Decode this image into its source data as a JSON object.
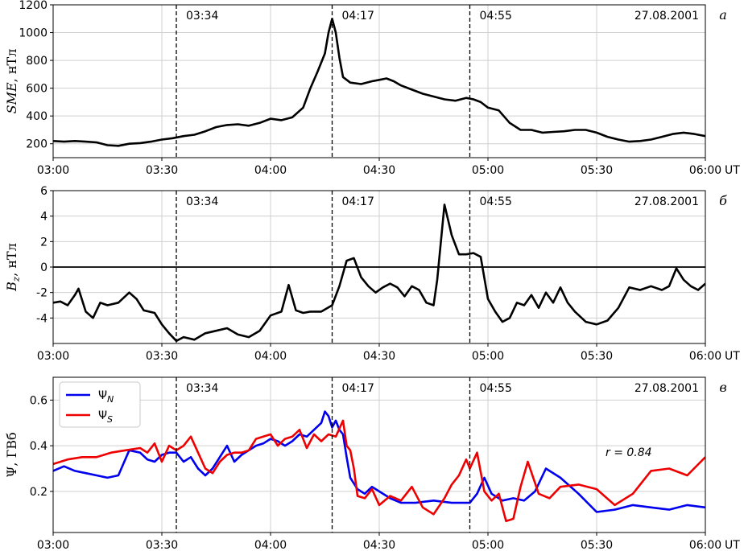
{
  "chart_data": [
    {
      "type": "line",
      "panel_letter": "а",
      "ylabel_italic": "SME",
      "ylabel_rest": ", нТл",
      "date": "27.08.2001",
      "x_unit": "UT",
      "xlim": [
        "03:00",
        "06:00"
      ],
      "ylim": [
        100,
        1200
      ],
      "yticks": [
        200,
        400,
        600,
        800,
        1000,
        1200
      ],
      "xticks": [
        "03:00",
        "03:30",
        "04:00",
        "04:30",
        "05:00",
        "05:30",
        "06:00"
      ],
      "events": [
        "03:34",
        "04:17",
        "04:55"
      ],
      "grid": true,
      "series": [
        {
          "color": "#000000",
          "x": [
            "03:00",
            "03:03",
            "03:06",
            "03:09",
            "03:12",
            "03:15",
            "03:18",
            "03:21",
            "03:24",
            "03:27",
            "03:30",
            "03:33",
            "03:36",
            "03:39",
            "03:42",
            "03:45",
            "03:48",
            "03:51",
            "03:54",
            "03:57",
            "04:00",
            "04:03",
            "04:06",
            "04:09",
            "04:11",
            "04:13",
            "04:15",
            "04:16",
            "04:17",
            "04:18",
            "04:19",
            "04:20",
            "04:22",
            "04:25",
            "04:28",
            "04:30",
            "04:32",
            "04:34",
            "04:36",
            "04:39",
            "04:42",
            "04:45",
            "04:48",
            "04:51",
            "04:54",
            "04:56",
            "04:58",
            "05:00",
            "05:03",
            "05:06",
            "05:09",
            "05:12",
            "05:15",
            "05:18",
            "05:21",
            "05:24",
            "05:27",
            "05:30",
            "05:33",
            "05:36",
            "05:39",
            "05:42",
            "05:45",
            "05:48",
            "05:51",
            "05:54",
            "05:57",
            "06:00"
          ],
          "y": [
            220,
            215,
            220,
            215,
            210,
            190,
            185,
            200,
            205,
            215,
            230,
            240,
            255,
            265,
            290,
            320,
            335,
            340,
            330,
            350,
            380,
            370,
            390,
            460,
            600,
            720,
            850,
            1000,
            1100,
            1000,
            820,
            680,
            640,
            630,
            650,
            660,
            670,
            650,
            620,
            590,
            560,
            540,
            520,
            510,
            530,
            520,
            500,
            460,
            440,
            350,
            300,
            300,
            280,
            285,
            290,
            300,
            300,
            280,
            250,
            230,
            215,
            220,
            230,
            250,
            270,
            280,
            270,
            255
          ]
        }
      ]
    },
    {
      "type": "line",
      "panel_letter": "б",
      "ylabel_italic": "B",
      "ylabel_sub": "z",
      "ylabel_rest": ", нТл",
      "date": "27.08.2001",
      "x_unit": "UT",
      "xlim": [
        "03:00",
        "06:00"
      ],
      "ylim": [
        -6,
        6
      ],
      "yticks": [
        -4,
        -2,
        0,
        2,
        4,
        6
      ],
      "xticks": [
        "03:00",
        "03:30",
        "04:00",
        "04:30",
        "05:00",
        "05:30",
        "06:00"
      ],
      "events": [
        "03:34",
        "04:17",
        "04:55"
      ],
      "reference_line": 0,
      "grid": true,
      "series": [
        {
          "color": "#000000",
          "x": [
            "03:00",
            "03:02",
            "03:04",
            "03:06",
            "03:07",
            "03:09",
            "03:11",
            "03:13",
            "03:15",
            "03:18",
            "03:21",
            "03:23",
            "03:25",
            "03:28",
            "03:30",
            "03:32",
            "03:34",
            "03:36",
            "03:39",
            "03:42",
            "03:45",
            "03:48",
            "03:51",
            "03:54",
            "03:57",
            "04:00",
            "04:03",
            "04:05",
            "04:07",
            "04:09",
            "04:11",
            "04:14",
            "04:17",
            "04:19",
            "04:21",
            "04:23",
            "04:25",
            "04:27",
            "04:29",
            "04:31",
            "04:33",
            "04:35",
            "04:37",
            "04:39",
            "04:41",
            "04:43",
            "04:45",
            "04:46",
            "04:48",
            "04:50",
            "04:52",
            "04:54",
            "04:56",
            "04:58",
            "05:00",
            "05:02",
            "05:04",
            "05:06",
            "05:08",
            "05:10",
            "05:12",
            "05:14",
            "05:16",
            "05:18",
            "05:20",
            "05:22",
            "05:24",
            "05:27",
            "05:30",
            "05:33",
            "05:36",
            "05:39",
            "05:42",
            "05:45",
            "05:48",
            "05:50",
            "05:52",
            "05:54",
            "05:56",
            "05:58",
            "06:00"
          ],
          "y": [
            -2.8,
            -2.7,
            -3.0,
            -2.2,
            -1.7,
            -3.5,
            -4.0,
            -2.8,
            -3.0,
            -2.8,
            -2.0,
            -2.5,
            -3.4,
            -3.6,
            -4.5,
            -5.2,
            -5.8,
            -5.5,
            -5.7,
            -5.2,
            -5.0,
            -4.8,
            -5.3,
            -5.5,
            -5.0,
            -3.8,
            -3.5,
            -1.4,
            -3.4,
            -3.6,
            -3.5,
            -3.5,
            -3.0,
            -1.5,
            0.5,
            0.7,
            -0.8,
            -1.5,
            -2.0,
            -1.6,
            -1.3,
            -1.6,
            -2.3,
            -1.5,
            -1.8,
            -2.8,
            -3.0,
            -1.0,
            4.9,
            2.5,
            1.0,
            1.0,
            1.1,
            0.8,
            -2.5,
            -3.5,
            -4.3,
            -4.0,
            -2.8,
            -3.0,
            -2.2,
            -3.2,
            -2.0,
            -2.8,
            -1.6,
            -2.8,
            -3.5,
            -4.3,
            -4.5,
            -4.2,
            -3.2,
            -1.6,
            -1.8,
            -1.5,
            -1.8,
            -1.5,
            -0.1,
            -1.0,
            -1.5,
            -1.8,
            -1.3
          ]
        }
      ]
    },
    {
      "type": "line",
      "panel_letter": "в",
      "ylabel": "Ψ, ГВб",
      "date": "27.08.2001",
      "x_unit": "UT",
      "xlim": [
        "03:00",
        "06:00"
      ],
      "ylim": [
        0.02,
        0.7
      ],
      "yticks": [
        0.2,
        0.4,
        0.6
      ],
      "xticks": [
        "03:00",
        "03:30",
        "04:00",
        "04:30",
        "05:00",
        "05:30",
        "06:00"
      ],
      "events": [
        "03:34",
        "04:17",
        "04:55"
      ],
      "annotation": "r = 0.84",
      "grid": true,
      "legend_position": "top-left",
      "series": [
        {
          "name_base": "Ψ",
          "name_sub": "N",
          "color": "#0000ee",
          "x": [
            "03:00",
            "03:03",
            "03:06",
            "03:09",
            "03:12",
            "03:15",
            "03:18",
            "03:21",
            "03:24",
            "03:26",
            "03:28",
            "03:30",
            "03:32",
            "03:34",
            "03:36",
            "03:38",
            "03:40",
            "03:42",
            "03:44",
            "03:46",
            "03:48",
            "03:50",
            "03:52",
            "03:54",
            "03:56",
            "03:58",
            "04:00",
            "04:02",
            "04:04",
            "04:06",
            "04:08",
            "04:10",
            "04:12",
            "04:14",
            "04:15",
            "04:16",
            "04:17",
            "04:18",
            "04:19",
            "04:20",
            "04:21",
            "04:22",
            "04:24",
            "04:26",
            "04:28",
            "04:30",
            "04:33",
            "04:36",
            "04:40",
            "04:45",
            "04:50",
            "04:55",
            "04:57",
            "04:59",
            "05:01",
            "05:04",
            "05:07",
            "05:10",
            "05:13",
            "05:16",
            "05:20",
            "05:25",
            "05:30",
            "05:35",
            "05:40",
            "05:45",
            "05:50",
            "05:55",
            "06:00"
          ],
          "y": [
            0.29,
            0.31,
            0.29,
            0.28,
            0.27,
            0.26,
            0.27,
            0.38,
            0.37,
            0.34,
            0.33,
            0.36,
            0.37,
            0.37,
            0.33,
            0.35,
            0.3,
            0.27,
            0.3,
            0.35,
            0.4,
            0.33,
            0.36,
            0.38,
            0.4,
            0.41,
            0.43,
            0.42,
            0.4,
            0.42,
            0.45,
            0.44,
            0.47,
            0.5,
            0.55,
            0.53,
            0.48,
            0.51,
            0.47,
            0.45,
            0.35,
            0.26,
            0.21,
            0.19,
            0.22,
            0.2,
            0.17,
            0.15,
            0.15,
            0.16,
            0.15,
            0.15,
            0.19,
            0.26,
            0.19,
            0.16,
            0.17,
            0.16,
            0.2,
            0.3,
            0.26,
            0.19,
            0.11,
            0.12,
            0.14,
            0.13,
            0.12,
            0.14,
            0.13
          ]
        },
        {
          "name_base": "Ψ",
          "name_sub": "S",
          "color": "#ee0000",
          "x": [
            "03:00",
            "03:04",
            "03:08",
            "03:12",
            "03:16",
            "03:20",
            "03:24",
            "03:26",
            "03:28",
            "03:30",
            "03:32",
            "03:34",
            "03:36",
            "03:38",
            "03:40",
            "03:42",
            "03:44",
            "03:46",
            "03:48",
            "03:50",
            "03:52",
            "03:54",
            "03:56",
            "03:58",
            "04:00",
            "04:02",
            "04:04",
            "04:06",
            "04:08",
            "04:10",
            "04:12",
            "04:14",
            "04:16",
            "04:18",
            "04:20",
            "04:21",
            "04:22",
            "04:23",
            "04:24",
            "04:26",
            "04:28",
            "04:30",
            "04:33",
            "04:36",
            "04:39",
            "04:42",
            "04:45",
            "04:48",
            "04:50",
            "04:52",
            "04:54",
            "04:55",
            "04:57",
            "04:59",
            "05:01",
            "05:03",
            "05:05",
            "05:07",
            "05:09",
            "05:11",
            "05:14",
            "05:17",
            "05:20",
            "05:25",
            "05:30",
            "05:35",
            "05:40",
            "05:45",
            "05:50",
            "05:55",
            "06:00"
          ],
          "y": [
            0.32,
            0.34,
            0.35,
            0.35,
            0.37,
            0.38,
            0.39,
            0.37,
            0.41,
            0.33,
            0.4,
            0.38,
            0.4,
            0.44,
            0.37,
            0.3,
            0.28,
            0.33,
            0.36,
            0.37,
            0.37,
            0.38,
            0.43,
            0.44,
            0.45,
            0.4,
            0.43,
            0.44,
            0.47,
            0.39,
            0.45,
            0.42,
            0.45,
            0.44,
            0.51,
            0.4,
            0.38,
            0.3,
            0.18,
            0.17,
            0.21,
            0.14,
            0.18,
            0.16,
            0.22,
            0.13,
            0.1,
            0.17,
            0.23,
            0.27,
            0.34,
            0.3,
            0.37,
            0.2,
            0.16,
            0.19,
            0.07,
            0.08,
            0.22,
            0.33,
            0.19,
            0.17,
            0.22,
            0.23,
            0.21,
            0.14,
            0.19,
            0.29,
            0.3,
            0.27,
            0.35
          ]
        }
      ]
    }
  ]
}
